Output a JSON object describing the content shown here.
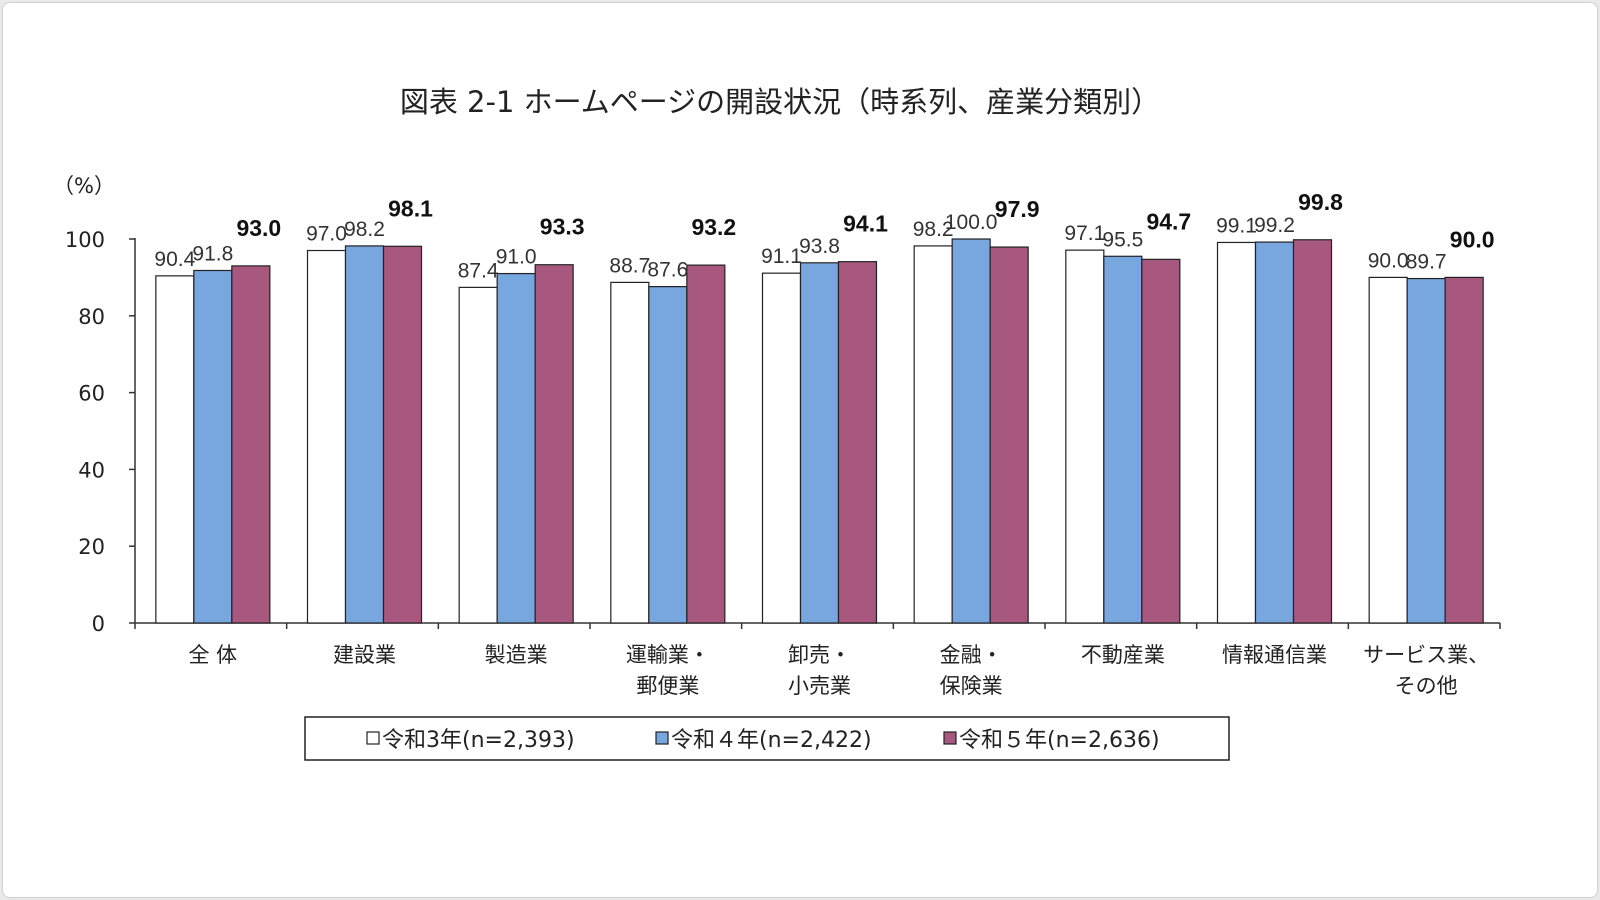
{
  "chart_data": {
    "type": "bar",
    "title": "図表 2-1 ホームページの開設状況（時系列、産業分類別）",
    "ylabel": "（%）",
    "ylim": [
      0,
      100
    ],
    "yticks": [
      "0",
      "20",
      "40",
      "60",
      "80",
      "100"
    ],
    "categories": [
      [
        "全 体"
      ],
      [
        "建設業"
      ],
      [
        "製造業"
      ],
      [
        "運輸業・",
        "郵便業"
      ],
      [
        "卸売・",
        "小売業"
      ],
      [
        "金融・",
        "保険業"
      ],
      [
        "不動産業"
      ],
      [
        "情報通信業"
      ],
      [
        "サービス業、",
        "その他"
      ]
    ],
    "series": [
      {
        "name": "令和3年(n=2,393)",
        "color": "#ffffff",
        "values": [
          90.4,
          97.0,
          87.4,
          88.7,
          91.1,
          98.2,
          97.1,
          99.1,
          90.0
        ],
        "labels": [
          "90.4",
          "97.0",
          "87.4",
          "88.7",
          "91.1",
          "98.2",
          "97.1",
          "99.1",
          "90.0"
        ],
        "bold": false
      },
      {
        "name": "令和４年(n=2,422)",
        "color": "#78a6df",
        "values": [
          91.8,
          98.2,
          91.0,
          87.6,
          93.8,
          100.0,
          95.5,
          99.2,
          89.7
        ],
        "labels": [
          "91.8",
          "98.2",
          "91.0",
          "87.6",
          "93.8",
          "100.0",
          "95.5",
          "99.2",
          "89.7"
        ],
        "bold": false
      },
      {
        "name": "令和５年(n=2,636)",
        "color": "#a8577f",
        "values": [
          93.0,
          98.1,
          93.3,
          93.2,
          94.1,
          97.9,
          94.7,
          99.8,
          90.0
        ],
        "labels": [
          "93.0",
          "98.1",
          "93.3",
          "93.2",
          "94.1",
          "97.9",
          "94.7",
          "99.8",
          "90.0"
        ],
        "bold": true
      }
    ],
    "legend_position": "bottom",
    "grid": false
  }
}
